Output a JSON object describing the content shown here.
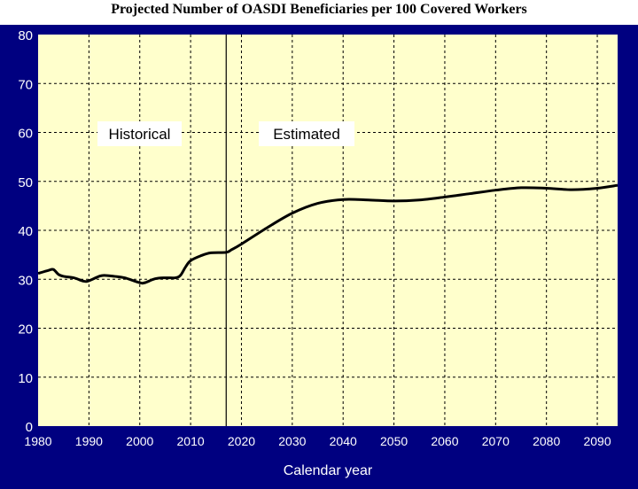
{
  "chart_data": {
    "type": "line",
    "title": "Projected Number of OASDI Beneficiaries per 100 Covered Workers",
    "xlabel": "Calendar year",
    "ylabel": "",
    "xlim": [
      1980,
      2094
    ],
    "ylim": [
      0,
      80
    ],
    "x_ticks": [
      "1980",
      "1990",
      "2000",
      "2010",
      "2020",
      "2030",
      "2040",
      "2050",
      "2060",
      "2070",
      "2080",
      "2090"
    ],
    "y_ticks": [
      "0",
      "10",
      "20",
      "30",
      "40",
      "50",
      "60",
      "70",
      "80"
    ],
    "grid": true,
    "divider_year": 2017,
    "annotations": [
      "Historical",
      "Estimated"
    ],
    "colors": {
      "frame": "#000080",
      "plot_bg": "#FFFFCC",
      "line": "#000000"
    },
    "series": [
      {
        "x": [
          1980,
          1982,
          1983,
          1984,
          1985,
          1987,
          1989,
          1990,
          1992,
          1993,
          1995,
          1997,
          2000,
          2001,
          2003,
          2005,
          2007,
          2008,
          2009,
          2010,
          2012,
          2014,
          2017,
          2018,
          2020,
          2025,
          2030,
          2035,
          2040,
          2045,
          2050,
          2055,
          2060,
          2065,
          2070,
          2075,
          2080,
          2085,
          2090,
          2094
        ],
        "y": [
          31.2,
          31.8,
          32.0,
          31.0,
          30.6,
          30.3,
          29.6,
          29.7,
          30.6,
          30.8,
          30.6,
          30.3,
          29.3,
          29.3,
          30.1,
          30.3,
          30.3,
          30.8,
          32.5,
          33.8,
          34.8,
          35.4,
          35.5,
          36.0,
          37.2,
          40.5,
          43.5,
          45.5,
          46.3,
          46.2,
          46.0,
          46.2,
          46.8,
          47.5,
          48.2,
          48.7,
          48.6,
          48.3,
          48.6,
          49.2
        ]
      }
    ]
  }
}
